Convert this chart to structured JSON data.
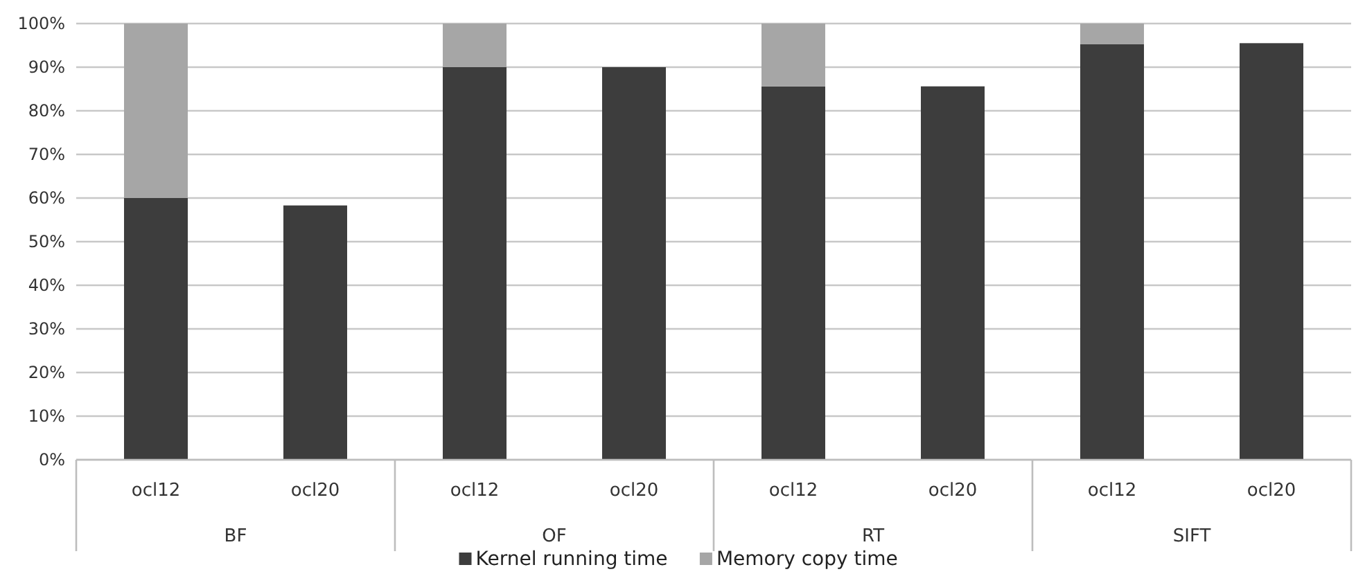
{
  "chart_data": {
    "type": "bar",
    "stacked": true,
    "categories": [
      "ocl12",
      "ocl20",
      "ocl12",
      "ocl20",
      "ocl12",
      "ocl20",
      "ocl12",
      "ocl20"
    ],
    "series": [
      {
        "name": "Kernel running time",
        "color": "#3d3d3d",
        "values": [
          60,
          58.3,
          90,
          90,
          85.6,
          85.6,
          95.3,
          95.5
        ]
      },
      {
        "name": "Memory copy time",
        "color": "#a6a6a6",
        "values": [
          40,
          null,
          10,
          null,
          14.4,
          null,
          4.7,
          null
        ]
      }
    ],
    "annotations": [
      "BF",
      "OF",
      "RT",
      "SIFT"
    ],
    "ylim": [
      0,
      100
    ],
    "yticks": [
      {
        "value": 0,
        "label": "0%"
      },
      {
        "value": 10,
        "label": "10%"
      },
      {
        "value": 20,
        "label": "20%"
      },
      {
        "value": 30,
        "label": "30%"
      },
      {
        "value": 40,
        "label": "40%"
      },
      {
        "value": 50,
        "label": "50%"
      },
      {
        "value": 60,
        "label": "60%"
      },
      {
        "value": 70,
        "label": "70%"
      },
      {
        "value": 80,
        "label": "80%"
      },
      {
        "value": 90,
        "label": "90%"
      },
      {
        "value": 100,
        "label": "100%"
      }
    ],
    "grid": "y",
    "legend": "bottom"
  }
}
